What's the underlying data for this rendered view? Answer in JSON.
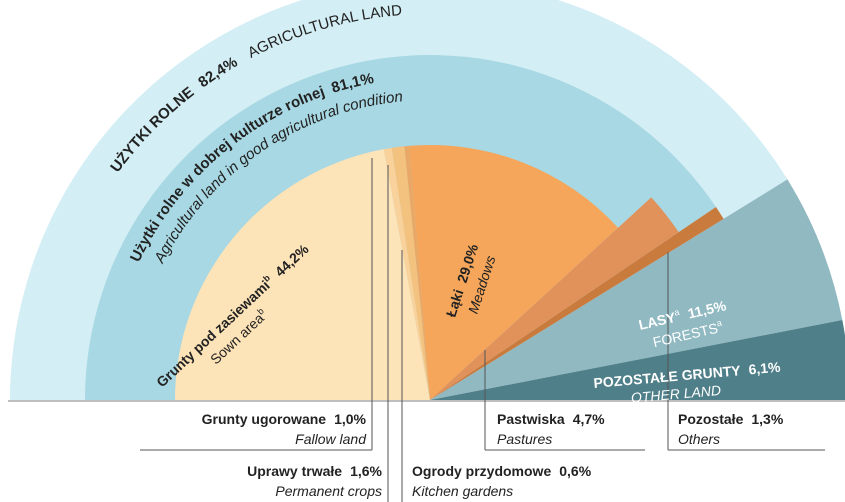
{
  "chart_data": {
    "type": "pie",
    "rings": [
      {
        "segments": [
          {
            "name": "UŻYTKI ROLNE",
            "name_en": "AGRICULTURAL LAND",
            "value": 82.4,
            "value_label": "82,4%",
            "color": "#d3eef4"
          },
          {
            "name": "LASY",
            "note": "a",
            "name_en": "FORESTS",
            "note_en": "a",
            "value": 11.5,
            "value_label": "11,5%",
            "color": "#90b9c2"
          },
          {
            "name": "POZOSTAŁE GRUNTY",
            "name_en": "OTHER LAND",
            "value": 6.1,
            "value_label": "6,1%",
            "color": "#4f7f89"
          }
        ]
      },
      {
        "segments": [
          {
            "name": "Użytki rolne w dobrej kulturze rolnej",
            "name_en": "Agricultural land in good agricultural condition",
            "value": 81.1,
            "value_label": "81,1%",
            "color": "#a8d8e3"
          },
          {
            "name": "Pozostałe",
            "name_en": "Others",
            "value": 1.3,
            "value_label": "1,3%",
            "color": "#c97b3e"
          }
        ]
      },
      {
        "segments": [
          {
            "name": "Grunty pod zasiewami",
            "note": "b",
            "name_en": "Sown area",
            "note_en": "b",
            "value": 44.2,
            "value_label": "44,2%",
            "color": "#fde3b8"
          },
          {
            "name": "Grunty ugorowane",
            "name_en": "Fallow land",
            "value": 1.0,
            "value_label": "1,0%",
            "color": "#f8d29a"
          },
          {
            "name": "Uprawy trwałe",
            "name_en": "Permanent crops",
            "value": 1.6,
            "value_label": "1,6%",
            "color": "#f3c27e"
          },
          {
            "name": "Ogrody przydomowe",
            "name_en": "Kitchen gardens",
            "value": 0.6,
            "value_label": "0,6%",
            "color": "#e9a866"
          },
          {
            "name": "Łąki",
            "name_en": "Meadows",
            "value": 29.0,
            "value_label": "29,0%",
            "color": "#f5a65b"
          },
          {
            "name": "Pastwiska",
            "name_en": "Pastures",
            "value": 4.7,
            "value_label": "4,7%",
            "color": "#e0925a"
          }
        ]
      }
    ]
  }
}
